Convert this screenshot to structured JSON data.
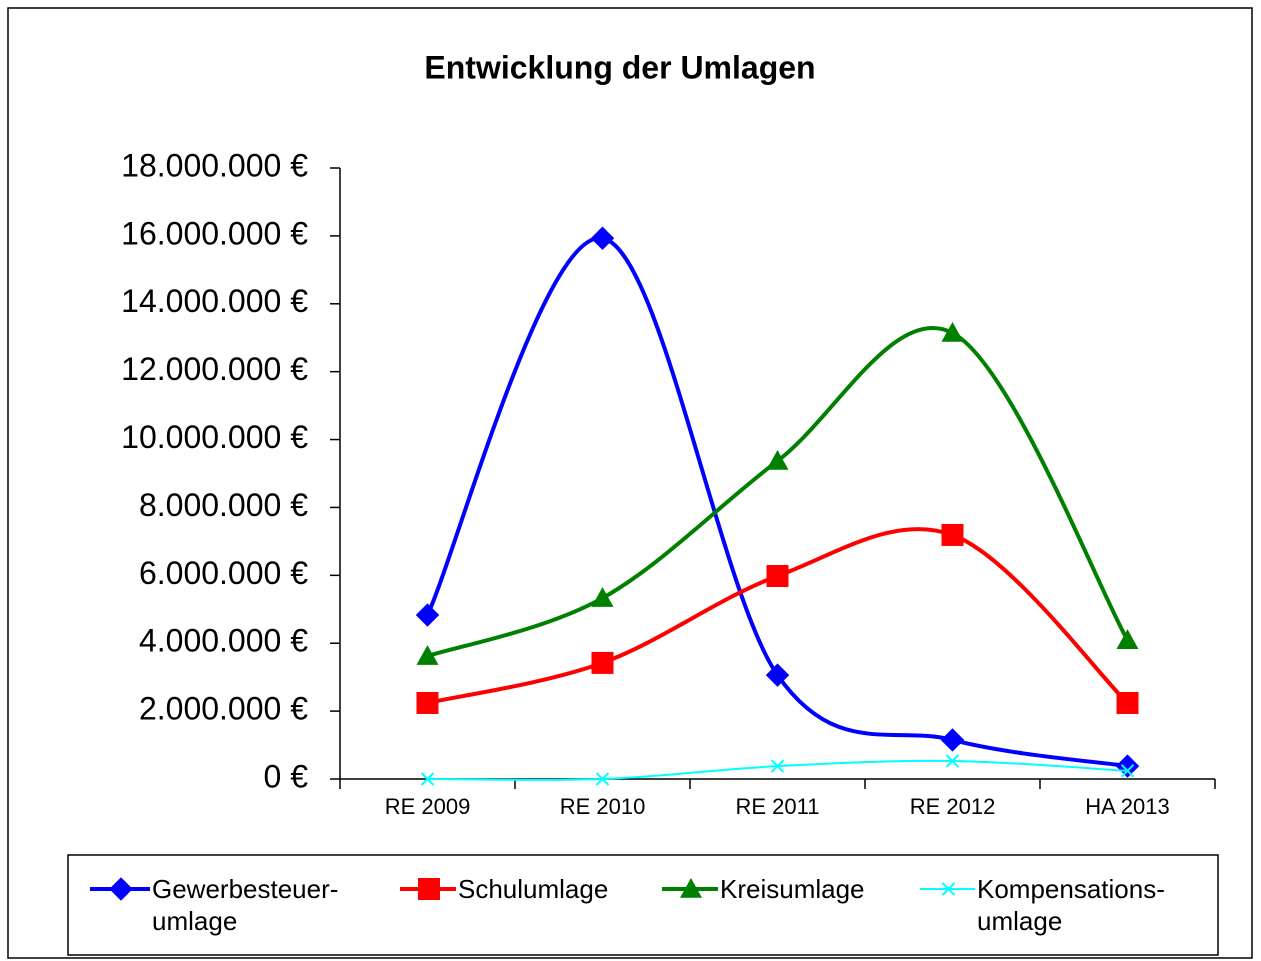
{
  "chart_data": {
    "type": "line",
    "title": "Entwicklung der Umlagen",
    "categories": [
      "RE 2009",
      "RE 2010",
      "RE 2011",
      "RE 2012",
      "HA 2013"
    ],
    "smooth": true,
    "series": [
      {
        "name": "Gewerbesteuer-\numlage",
        "color": "#0000ff",
        "marker": "diamond",
        "values": [
          4830000,
          15930000,
          3060000,
          1150000,
          380000
        ]
      },
      {
        "name": "Schulumlage",
        "color": "#ff0000",
        "marker": "square",
        "values": [
          2240000,
          3420000,
          5980000,
          7190000,
          2240000
        ]
      },
      {
        "name": "Kreisumlage",
        "color": "#008000",
        "marker": "triangle",
        "values": [
          3620000,
          5330000,
          9370000,
          13140000,
          4090000
        ]
      },
      {
        "name": "Kompensations-\numlage",
        "color": "#00ffff",
        "marker": "x",
        "values": [
          0,
          0,
          380000,
          530000,
          240000
        ]
      }
    ],
    "ylim": [
      0,
      18000000
    ],
    "yticks": [
      {
        "value": 0,
        "label": "0 €"
      },
      {
        "value": 2000000,
        "label": "2.000.000 €"
      },
      {
        "value": 4000000,
        "label": "4.000.000 €"
      },
      {
        "value": 6000000,
        "label": "6.000.000 €"
      },
      {
        "value": 8000000,
        "label": "8.000.000 €"
      },
      {
        "value": 10000000,
        "label": "10.000.000 €"
      },
      {
        "value": 12000000,
        "label": "12.000.000 €"
      },
      {
        "value": 14000000,
        "label": "14.000.000 €"
      },
      {
        "value": 16000000,
        "label": "16.000.000 €"
      },
      {
        "value": 18000000,
        "label": "18.000.000 €"
      }
    ],
    "legend": "bottom"
  }
}
